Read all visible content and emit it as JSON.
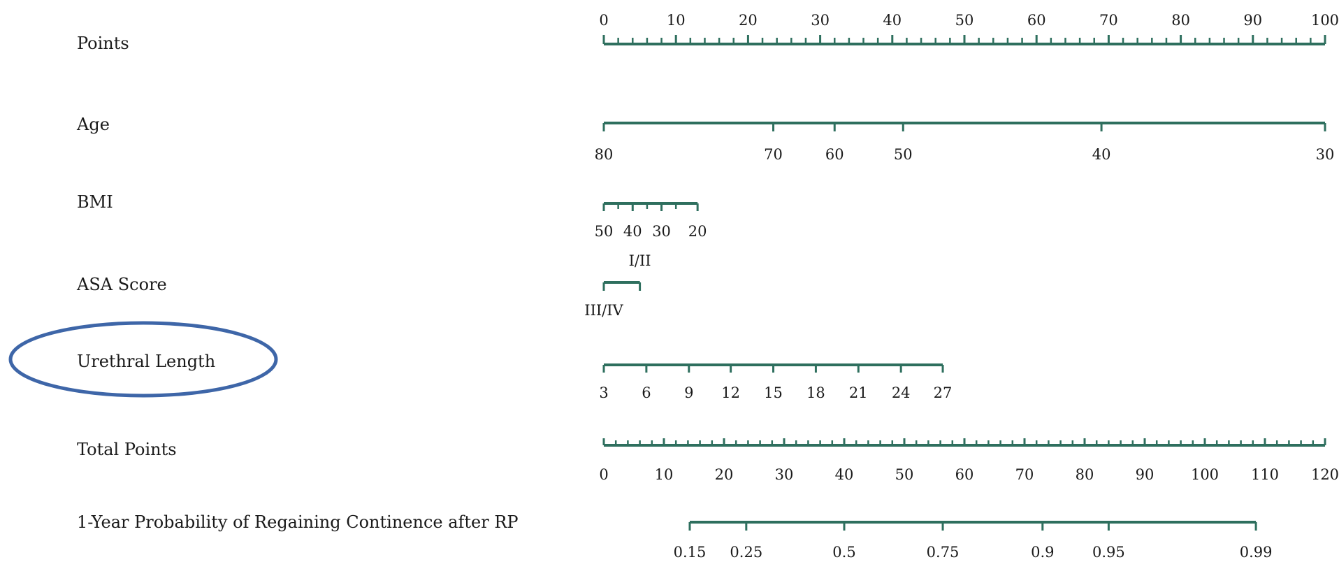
{
  "chart_data": {
    "type": "nomogram",
    "colors": {
      "axis": "#2e6f5e",
      "highlight_ellipse": "#3e66a8",
      "text": "#1a1a1a"
    },
    "highlighted_variable": "Urethral Length",
    "variables": [
      {
        "key": "points",
        "name": "Points",
        "points_range": [
          0,
          100
        ],
        "ticks": [
          {
            "label": "0",
            "points": 0
          },
          {
            "label": "10",
            "points": 10
          },
          {
            "label": "20",
            "points": 20
          },
          {
            "label": "30",
            "points": 30
          },
          {
            "label": "40",
            "points": 40
          },
          {
            "label": "50",
            "points": 50
          },
          {
            "label": "60",
            "points": 60
          },
          {
            "label": "70",
            "points": 70
          },
          {
            "label": "80",
            "points": 80
          },
          {
            "label": "90",
            "points": 90
          },
          {
            "label": "100",
            "points": 100
          }
        ],
        "minor_step": 2
      },
      {
        "key": "age",
        "name": "Age",
        "points_range": [
          0,
          100
        ],
        "ticks": [
          {
            "label": "80",
            "points": 0
          },
          {
            "label": "70",
            "points": 23.5
          },
          {
            "label": "60",
            "points": 32
          },
          {
            "label": "50",
            "points": 41.5
          },
          {
            "label": "40",
            "points": 69
          },
          {
            "label": "30",
            "points": 100
          }
        ]
      },
      {
        "key": "bmi",
        "name": "BMI",
        "points_range": [
          0,
          13
        ],
        "ticks": [
          {
            "label": "50",
            "points": 0
          },
          {
            "label": "40",
            "points": 4
          },
          {
            "label": "30",
            "points": 8
          },
          {
            "label": "20",
            "points": 13
          }
        ],
        "minor_points": [
          2,
          6,
          10
        ]
      },
      {
        "key": "asa",
        "name": "ASA Score",
        "points_range": [
          0,
          5
        ],
        "ticks": [
          {
            "label": "III/IV",
            "points": 0,
            "side": "below"
          },
          {
            "label": "I/II",
            "points": 5,
            "side": "above"
          }
        ]
      },
      {
        "key": "urethral",
        "name": "Urethral Length",
        "points_range": [
          0,
          47
        ],
        "ticks": [
          {
            "label": "3",
            "points": 0
          },
          {
            "label": "6",
            "points": 5.9
          },
          {
            "label": "9",
            "points": 11.8
          },
          {
            "label": "12",
            "points": 17.6
          },
          {
            "label": "15",
            "points": 23.5
          },
          {
            "label": "18",
            "points": 29.4
          },
          {
            "label": "21",
            "points": 35.3
          },
          {
            "label": "24",
            "points": 41.2
          },
          {
            "label": "27",
            "points": 47
          }
        ]
      },
      {
        "key": "total",
        "name": "Total Points",
        "total_range": [
          0,
          120
        ],
        "ticks": [
          {
            "label": "0",
            "total": 0
          },
          {
            "label": "10",
            "total": 10
          },
          {
            "label": "20",
            "total": 20
          },
          {
            "label": "30",
            "total": 30
          },
          {
            "label": "40",
            "total": 40
          },
          {
            "label": "50",
            "total": 50
          },
          {
            "label": "60",
            "total": 60
          },
          {
            "label": "70",
            "total": 70
          },
          {
            "label": "80",
            "total": 80
          },
          {
            "label": "90",
            "total": 90
          },
          {
            "label": "100",
            "total": 100
          },
          {
            "label": "110",
            "total": 110
          },
          {
            "label": "120",
            "total": 120
          }
        ],
        "minor_step": 2
      },
      {
        "key": "prob",
        "name": "1-Year Probability of Regaining Continence after RP",
        "total_range": [
          14.3,
          108.5
        ],
        "ticks": [
          {
            "label": "0.15",
            "total": 14.3
          },
          {
            "label": "0.25",
            "total": 23.7
          },
          {
            "label": "0.5",
            "total": 40
          },
          {
            "label": "0.75",
            "total": 56.4
          },
          {
            "label": "0.9",
            "total": 73
          },
          {
            "label": "0.95",
            "total": 84
          },
          {
            "label": "0.99",
            "total": 108.5
          }
        ]
      }
    ]
  }
}
